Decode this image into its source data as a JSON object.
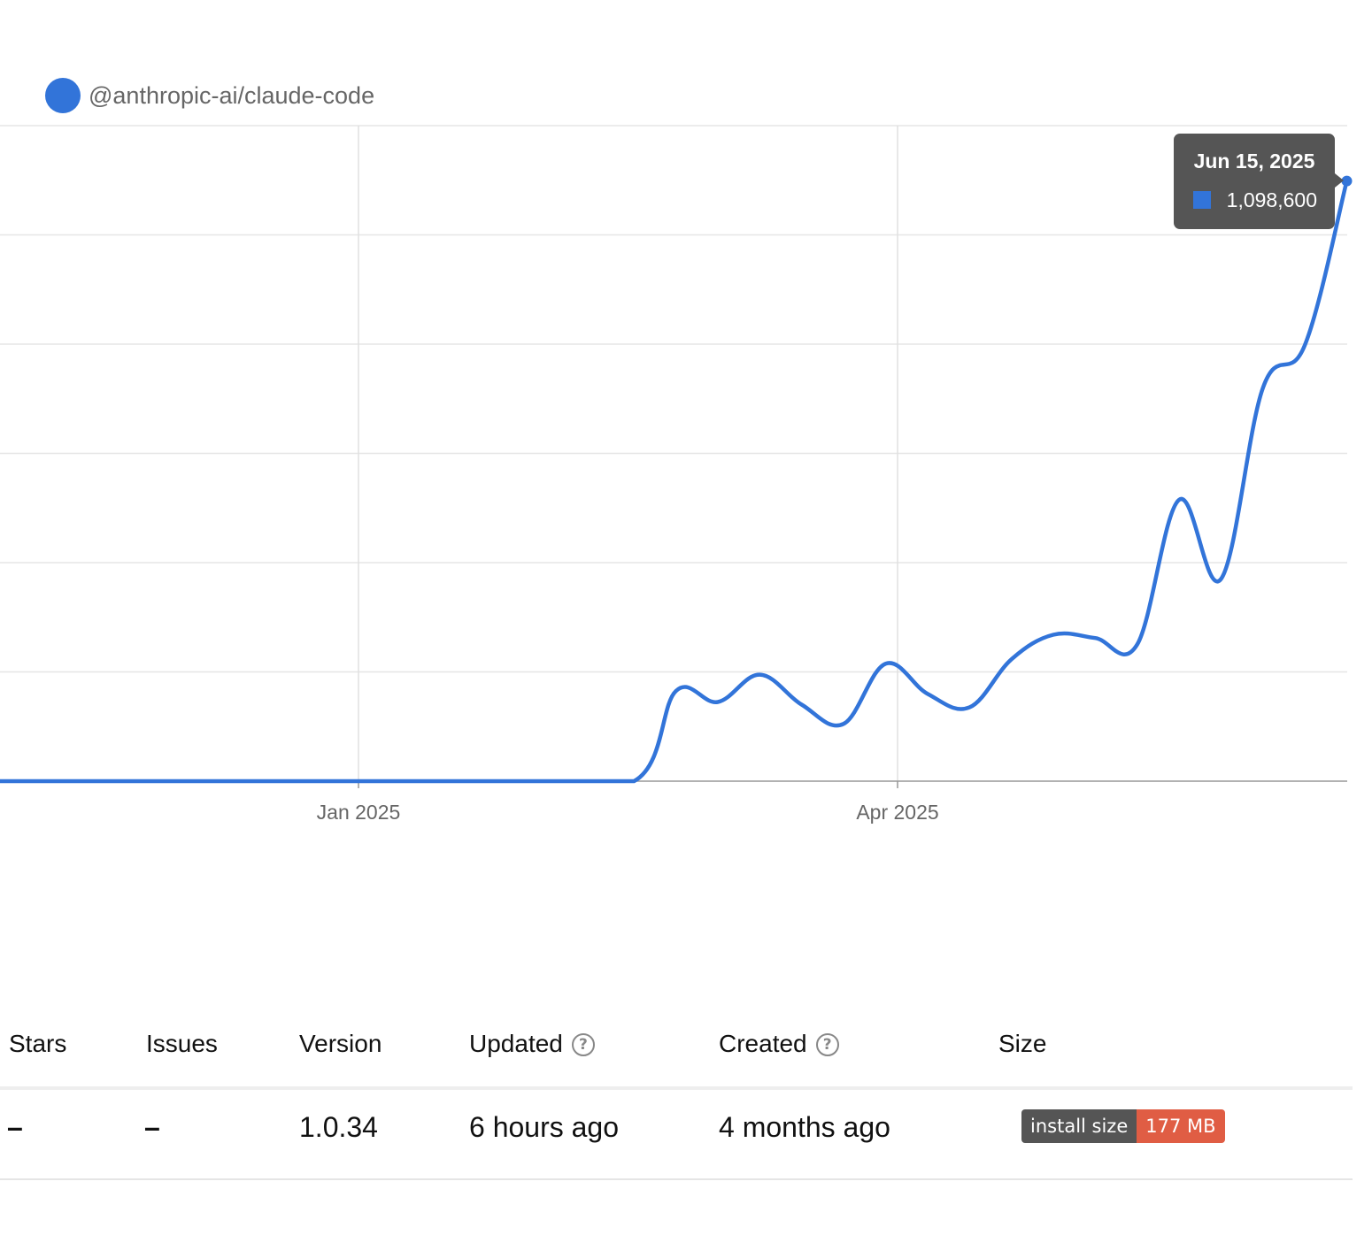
{
  "chart_data": {
    "type": "line",
    "series": [
      {
        "name": "@anthropic-ai/claude-code",
        "color": "#3274d9",
        "x": [
          "2024-10-13",
          "2024-11-03",
          "2024-11-24",
          "2024-12-15",
          "2025-01-05",
          "2025-01-26",
          "2025-02-16",
          "2025-02-23",
          "2025-03-02",
          "2025-03-09",
          "2025-03-16",
          "2025-03-23",
          "2025-03-30",
          "2025-04-06",
          "2025-04-13",
          "2025-04-20",
          "2025-04-27",
          "2025-05-04",
          "2025-05-11",
          "2025-05-18",
          "2025-05-25",
          "2025-06-01",
          "2025-06-08",
          "2025-06-15"
        ],
        "y": [
          0,
          0,
          0,
          0,
          0,
          0,
          0,
          165000,
          145000,
          195000,
          140000,
          105000,
          215000,
          160000,
          135000,
          223000,
          268000,
          262000,
          250000,
          515000,
          370000,
          720000,
          798000,
          1098600
        ]
      }
    ],
    "x_ticks": [
      "Jan 2025",
      "Apr 2025"
    ],
    "grid": true,
    "legend_position": "top-left"
  },
  "tooltip": {
    "date": "Jun 15, 2025",
    "value": "1,098,600"
  },
  "table": {
    "headers": {
      "stars": "Stars",
      "issues": "Issues",
      "version": "Version",
      "updated": "Updated",
      "created": "Created",
      "size": "Size"
    },
    "help_glyph": "?",
    "values": {
      "stars": "–",
      "issues": "–",
      "version": "1.0.34",
      "updated": "6 hours ago",
      "created": "4 months ago",
      "size_label": "install size",
      "size_value": "177 MB"
    }
  }
}
